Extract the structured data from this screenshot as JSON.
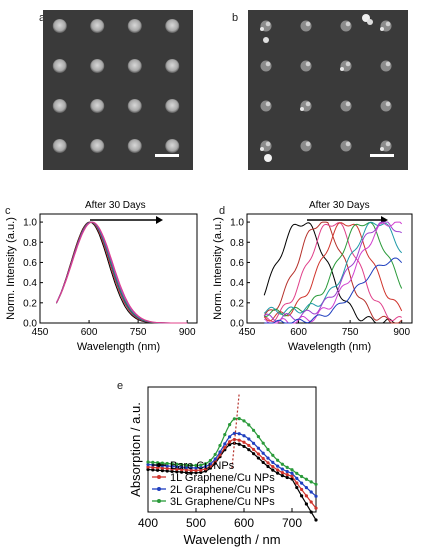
{
  "panels": {
    "a": {
      "label": "a"
    },
    "b": {
      "label": "b"
    },
    "c": {
      "label": "c"
    },
    "d": {
      "label": "d"
    },
    "e": {
      "label": "e"
    }
  },
  "sem": {
    "grid_rows": 4,
    "grid_cols": 4
  },
  "chart_data": [
    {
      "panel": "c",
      "type": "line",
      "annotation": "After 30 Days",
      "xlabel": "Wavelength (nm)",
      "ylabel": "Norm. Intensity (a.u.)",
      "xlim": [
        450,
        930
      ],
      "ylim": [
        0,
        1.08
      ],
      "xticks": [
        450,
        600,
        750,
        900
      ],
      "yticks": [
        "0.0",
        "0.2",
        "0.4",
        "0.6",
        "0.8",
        "1.0"
      ],
      "series": [
        {
          "color": "#000000",
          "peak": 602,
          "width": 95
        },
        {
          "color": "#d0342c",
          "peak": 604,
          "width": 97
        },
        {
          "color": "#1f3fbf",
          "peak": 606,
          "width": 98
        },
        {
          "color": "#2a9a3a",
          "peak": 607,
          "width": 99
        },
        {
          "color": "#9b3fd0",
          "peak": 608,
          "width": 101
        },
        {
          "color": "#e0408a",
          "peak": 610,
          "width": 102
        }
      ],
      "x_range": [
        500,
        900
      ]
    },
    {
      "panel": "d",
      "type": "line",
      "annotation": "After 30 Days",
      "xlabel": "Wavelength (nm)",
      "ylabel": "Norm. Intensity (a.u.)",
      "xlim": [
        450,
        930
      ],
      "ylim": [
        0,
        1.08
      ],
      "xticks": [
        450,
        600,
        750,
        900
      ],
      "yticks": [
        "0.0",
        "0.2",
        "0.4",
        "0.6",
        "0.8",
        "1.0"
      ],
      "series": [
        {
          "color": "#000000",
          "peak": 610,
          "width": 120,
          "floor": 0.0
        },
        {
          "color": "#b5302a",
          "peak": 665,
          "width": 115,
          "floor": 0.0
        },
        {
          "color": "#e0408a",
          "peak": 700,
          "width": 120,
          "floor": 0.0
        },
        {
          "color": "#d0342c",
          "peak": 740,
          "width": 120,
          "floor": 0.05
        },
        {
          "color": "#2a9a3a",
          "peak": 790,
          "width": 120,
          "floor": 0.1
        },
        {
          "color": "#1f9aa8",
          "peak": 830,
          "width": 130,
          "floor": 0.12
        },
        {
          "color": "#9b3fd0",
          "peak": 850,
          "width": 150,
          "floor": 0.05
        },
        {
          "color": "#d040d0",
          "peak": 870,
          "width": 160,
          "floor": 0.0
        },
        {
          "color": "#1f3fbf",
          "peak": 880,
          "width": 170,
          "floor": 0.0,
          "scale": 0.62
        }
      ],
      "x_range": [
        500,
        900
      ]
    },
    {
      "panel": "e",
      "type": "line",
      "xlabel": "Wavelength / nm",
      "ylabel": "Absorption / a.u.",
      "xlim": [
        400,
        750
      ],
      "xticks": [
        400,
        500,
        600,
        700
      ],
      "legend_position": "bottom-left",
      "series": [
        {
          "name": "Bare Cu NPs",
          "color": "#000000",
          "marker": "circle",
          "peak": 578,
          "height": 0.55
        },
        {
          "name": "1L Graphene/Cu NPs",
          "color": "#d0342c",
          "marker": "circle",
          "peak": 580,
          "height": 0.58
        },
        {
          "name": "2L Graphene/Cu NPs",
          "color": "#1f3fbf",
          "marker": "circle",
          "peak": 582,
          "height": 0.63
        },
        {
          "name": "3L Graphene/Cu NPs",
          "color": "#2a9a3a",
          "marker": "circle",
          "peak": 584,
          "height": 0.75
        }
      ]
    }
  ]
}
